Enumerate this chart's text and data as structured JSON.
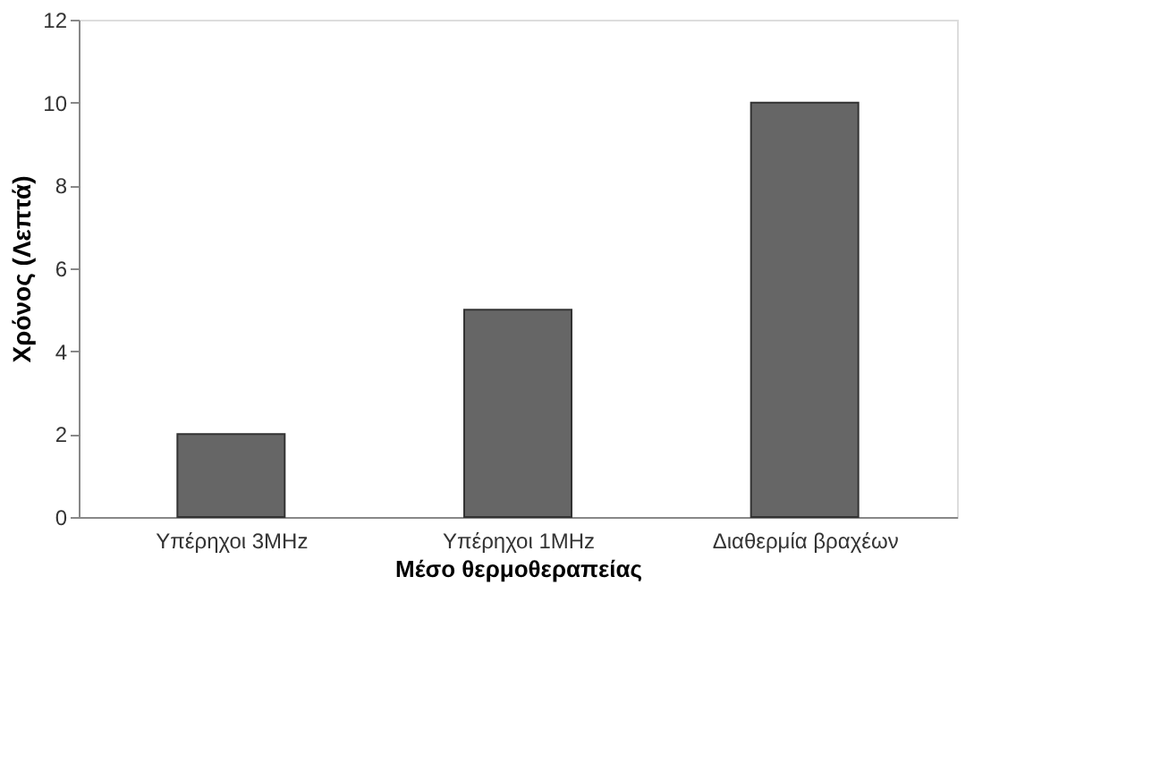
{
  "chart_data": {
    "type": "bar",
    "xlabel": "Μέσο θερμοθεραπείας",
    "ylabel": "Χρόνος (Λεπτά)",
    "categories": [
      "Υπέρηχοι 3MHz",
      "Υπέρηχοι 1MHz",
      "Διαθερμία βραχέων"
    ],
    "values": [
      2,
      5,
      10
    ],
    "color": "#666666",
    "ylim": [
      0,
      12
    ],
    "yticks": [
      0,
      2,
      4,
      6,
      8,
      10,
      12
    ],
    "grid": false
  }
}
